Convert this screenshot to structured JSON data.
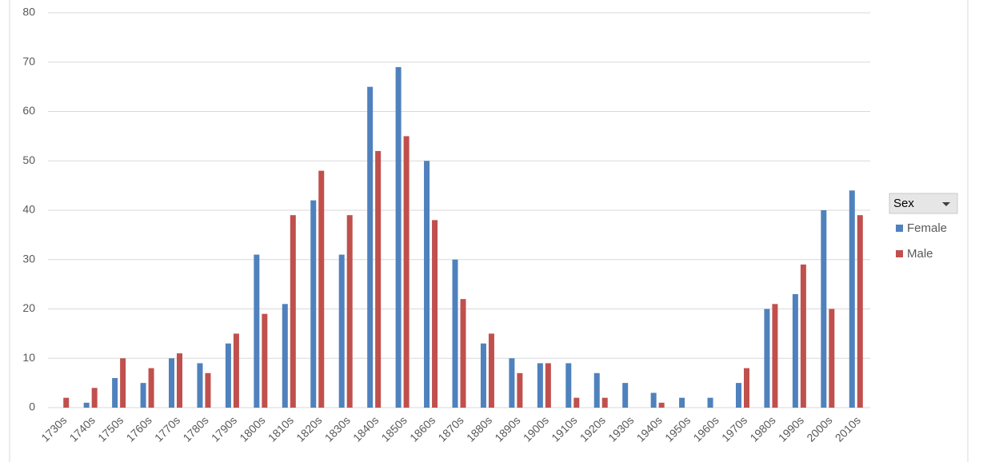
{
  "chart_data": {
    "type": "bar",
    "categories": [
      "1730s",
      "1740s",
      "1750s",
      "1760s",
      "1770s",
      "1780s",
      "1790s",
      "1800s",
      "1810s",
      "1820s",
      "1830s",
      "1840s",
      "1850s",
      "1860s",
      "1870s",
      "1880s",
      "1890s",
      "1900s",
      "1910s",
      "1920s",
      "1930s",
      "1940s",
      "1950s",
      "1960s",
      "1970s",
      "1980s",
      "1990s",
      "2000s",
      "2010s"
    ],
    "series": [
      {
        "name": "Female",
        "color": "#4f81bd",
        "values": [
          null,
          1,
          6,
          5,
          10,
          9,
          13,
          31,
          21,
          42,
          31,
          65,
          69,
          50,
          30,
          13,
          10,
          9,
          9,
          7,
          5,
          3,
          2,
          2,
          5,
          20,
          23,
          40,
          44
        ]
      },
      {
        "name": "Male",
        "color": "#c0504d",
        "values": [
          2,
          4,
          10,
          8,
          11,
          7,
          15,
          19,
          39,
          48,
          39,
          52,
          55,
          38,
          22,
          15,
          7,
          9,
          2,
          2,
          null,
          1,
          null,
          null,
          8,
          21,
          29,
          20,
          39
        ]
      }
    ],
    "legend_title": "Sex",
    "ylim": [
      0,
      80
    ],
    "yticks": [
      0,
      10,
      20,
      30,
      40,
      50,
      60,
      70,
      80
    ],
    "grid": true,
    "legend": "right"
  }
}
